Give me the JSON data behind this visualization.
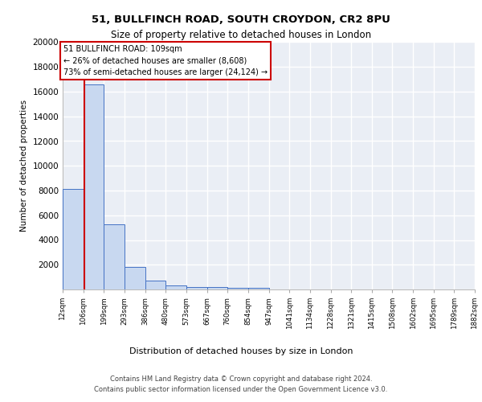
{
  "title1": "51, BULLFINCH ROAD, SOUTH CROYDON, CR2 8PU",
  "title2": "Size of property relative to detached houses in London",
  "xlabel": "Distribution of detached houses by size in London",
  "ylabel": "Number of detached properties",
  "footer1": "Contains HM Land Registry data © Crown copyright and database right 2024.",
  "footer2": "Contains public sector information licensed under the Open Government Licence v3.0.",
  "annotation_line1": "51 BULLFINCH ROAD: 109sqm",
  "annotation_line2": "← 26% of detached houses are smaller (8,608)",
  "annotation_line3": "73% of semi-detached houses are larger (24,124) →",
  "property_size": 109,
  "bin_edges": [
    12,
    106,
    199,
    293,
    386,
    480,
    573,
    667,
    760,
    854,
    947,
    1041,
    1134,
    1228,
    1321,
    1415,
    1508,
    1602,
    1695,
    1789,
    1882
  ],
  "bar_values": [
    8100,
    16600,
    5300,
    1850,
    700,
    300,
    220,
    190,
    160,
    120,
    0,
    0,
    0,
    0,
    0,
    0,
    0,
    0,
    0,
    0
  ],
  "bar_color": "#c8d8f0",
  "bar_edge_color": "#4472c4",
  "line_color": "#cc0000",
  "bg_color": "#eaeef5",
  "grid_color": "#ffffff",
  "ylim": [
    0,
    20000
  ],
  "yticks": [
    0,
    2000,
    4000,
    6000,
    8000,
    10000,
    12000,
    14000,
    16000,
    18000,
    20000
  ],
  "tick_labels": [
    "12sqm",
    "106sqm",
    "199sqm",
    "293sqm",
    "386sqm",
    "480sqm",
    "573sqm",
    "667sqm",
    "760sqm",
    "854sqm",
    "947sqm",
    "1041sqm",
    "1134sqm",
    "1228sqm",
    "1321sqm",
    "1415sqm",
    "1508sqm",
    "1602sqm",
    "1695sqm",
    "1789sqm",
    "1882sqm"
  ]
}
